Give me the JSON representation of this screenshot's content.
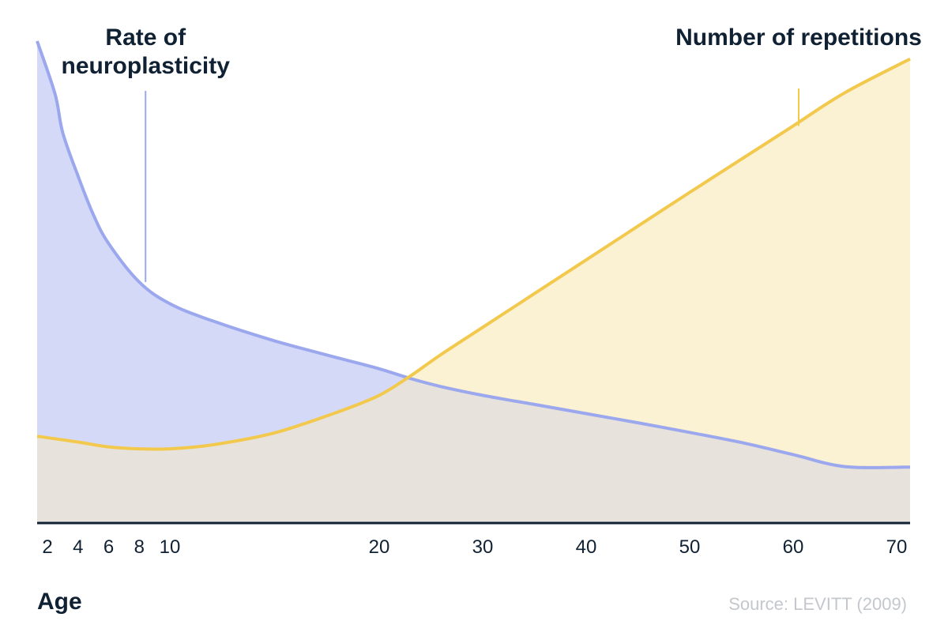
{
  "chart_data": {
    "type": "area",
    "xlabel": "Age",
    "x_ticks": [
      2,
      4,
      6,
      8,
      10,
      20,
      30,
      40,
      50,
      60,
      70
    ],
    "xlim": [
      2,
      70
    ],
    "ylim": [
      0,
      100
    ],
    "grid": false,
    "legend": "direct-labels",
    "series": [
      {
        "name": "Rate of neuroplasticity",
        "color": "#9ba8ee",
        "fill": "#d5d9f8",
        "x": [
          2,
          2.5,
          3,
          4,
          5,
          6,
          8,
          10,
          12,
          15,
          18,
          20,
          23,
          26,
          30,
          35,
          40,
          45,
          50,
          55,
          60,
          65,
          70
        ],
        "y": [
          100,
          89,
          81,
          72,
          64,
          58,
          50,
          45.5,
          42,
          37.8,
          34.3,
          32,
          30,
          28.3,
          26.5,
          24.6,
          22.7,
          20.8,
          18.8,
          16.7,
          14.2,
          11.7,
          11.6
        ]
      },
      {
        "name": "Number of repetitions",
        "color": "#f2c94c",
        "fill": "#fbf1d3",
        "x": [
          2,
          4,
          6,
          8,
          10,
          12,
          15,
          18,
          20,
          23,
          26,
          30,
          35,
          40,
          45,
          50,
          55,
          60,
          65,
          70
        ],
        "y": [
          18,
          16.8,
          15.8,
          15.4,
          15.4,
          16.2,
          18.7,
          23,
          26.5,
          30.5,
          35,
          40.6,
          47.6,
          54.6,
          61.6,
          68.6,
          75.5,
          82.4,
          89.3,
          96.3
        ]
      }
    ],
    "overlap_fill": "#e7e2dc",
    "annotations": {
      "series_1_pointer_x": 8,
      "series_2_pointer_x": 60
    },
    "source": "Source: LEVITT (2009)"
  }
}
